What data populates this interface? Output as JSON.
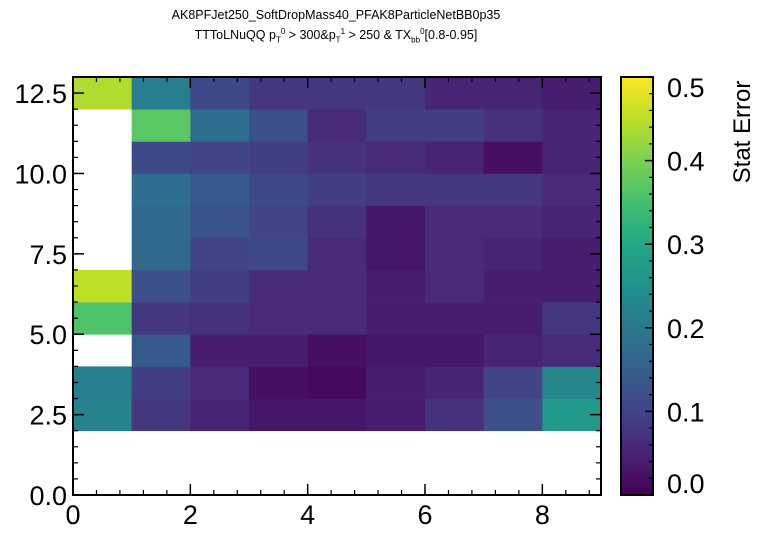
{
  "title_line1": "AK8PFJet250_SoftDropMass40_PFAK8ParticleNetBB0p35",
  "title_line2": {
    "part1": "TTToLNuQQ p",
    "pt0_sub": "T",
    "pt0_sup": "0",
    "part2": " > 300&p",
    "pt1_sub": "T",
    "pt1_sup": "1",
    "part3": " > 250 & TX",
    "tx_sub": "bb",
    "tx_sup": "0",
    "part4": "[0.8-0.95]"
  },
  "chart_data": {
    "type": "heatmap",
    "colormap": "viridis",
    "x_edges": [
      0,
      1,
      2,
      3,
      4,
      5,
      6,
      7,
      8,
      9
    ],
    "y_edges": [
      0,
      1,
      2,
      3,
      4,
      5,
      6,
      7,
      8,
      9,
      10,
      11,
      12,
      13
    ],
    "xlim": [
      0,
      9
    ],
    "ylim": [
      0,
      13
    ],
    "x_ticks": [
      0,
      2,
      4,
      6,
      8
    ],
    "x_tick_labels": [
      "0",
      "2",
      "4",
      "6",
      "8"
    ],
    "y_ticks": [
      0,
      2.5,
      5,
      7.5,
      10,
      12.5
    ],
    "y_tick_labels": [
      "0.0",
      "2.5",
      "5.0",
      "7.5",
      "10.0",
      "12.5"
    ],
    "colorbar": {
      "label": "Stat Error",
      "vmin": 0.0,
      "vmax": 0.5,
      "ticks": [
        0.0,
        0.1,
        0.2,
        0.3,
        0.4,
        0.5
      ],
      "tick_labels": [
        "0.0",
        "0.1",
        "0.2",
        "0.3",
        "0.4",
        "0.5"
      ]
    },
    "z_rows_bottom_to_top": [
      [
        null,
        null,
        null,
        null,
        null,
        null,
        null,
        null,
        null
      ],
      [
        null,
        null,
        null,
        null,
        null,
        null,
        null,
        null,
        null
      ],
      [
        0.22,
        0.08,
        0.05,
        0.03,
        0.03,
        0.04,
        0.07,
        0.12,
        0.27
      ],
      [
        0.21,
        0.09,
        0.06,
        0.02,
        0.01,
        0.04,
        0.05,
        0.1,
        0.23
      ],
      [
        null,
        0.14,
        0.04,
        0.04,
        0.02,
        0.03,
        0.03,
        0.05,
        0.06
      ],
      [
        0.36,
        0.08,
        0.07,
        0.06,
        0.06,
        0.04,
        0.04,
        0.04,
        0.08
      ],
      [
        0.45,
        0.12,
        0.09,
        0.06,
        0.06,
        0.04,
        0.06,
        0.04,
        0.04
      ],
      [
        null,
        0.17,
        0.1,
        0.11,
        0.06,
        0.03,
        0.06,
        0.05,
        0.04
      ],
      [
        null,
        0.17,
        0.13,
        0.1,
        0.07,
        0.03,
        0.06,
        0.06,
        0.05
      ],
      [
        null,
        0.18,
        0.14,
        0.11,
        0.09,
        0.08,
        0.08,
        0.08,
        0.06
      ],
      [
        null,
        0.11,
        0.1,
        0.09,
        0.07,
        0.06,
        0.05,
        0.02,
        0.05
      ],
      [
        null,
        0.37,
        0.18,
        0.12,
        0.06,
        0.09,
        0.09,
        0.07,
        0.05
      ],
      [
        0.44,
        0.21,
        0.11,
        0.08,
        0.08,
        0.08,
        0.05,
        0.05,
        0.04
      ]
    ]
  }
}
